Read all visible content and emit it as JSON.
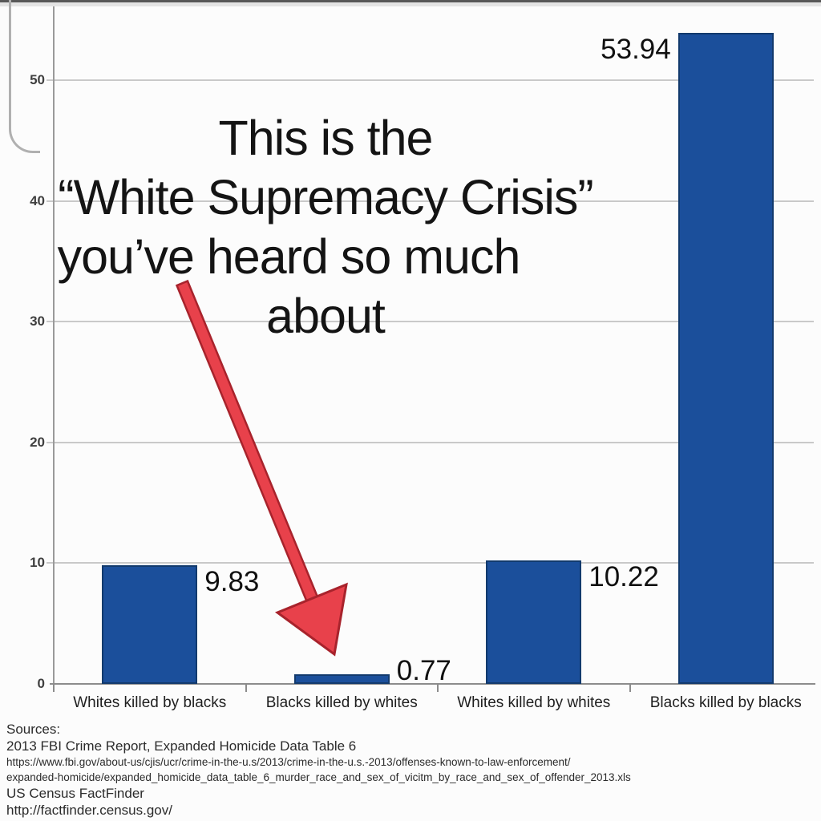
{
  "frame": {
    "top_bar_color": "#585858",
    "top_strip_color": "#e4e4e4",
    "corner_color": "#b0b0b0"
  },
  "chart_data": {
    "type": "bar",
    "title": "",
    "xlabel": "",
    "ylabel": "",
    "categories": [
      "Whites killed by blacks",
      "Blacks killed by whites",
      "Whites killed by whites",
      "Blacks killed by blacks"
    ],
    "values": [
      9.83,
      0.77,
      10.22,
      53.94
    ],
    "value_labels": [
      "9.83",
      "0.77",
      "10.22",
      "53.94"
    ],
    "yticks": [
      0,
      10,
      20,
      30,
      40,
      50
    ],
    "ylim": [
      0,
      55
    ],
    "grid": true,
    "legend": "none",
    "bar_color": "#1b4f9b",
    "bar_border_color": "#123a6d",
    "gridline_color": "#c9c9c9",
    "axis_color": "#8c8c8c",
    "tick_label_color": "#3f3f3f"
  },
  "annotation": {
    "lines": [
      "This is the",
      "“White Supremacy Crisis”",
      "you’ve heard so much",
      "about"
    ],
    "text_color": "#141414",
    "arrow_fill": "#e8414b",
    "arrow_outline": "#a8232c"
  },
  "sources": {
    "heading": "Sources:",
    "lines": [
      "2013 FBI Crime Report, Expanded Homicide Data Table 6",
      "https://www.fbi.gov/about-us/cjis/ucr/crime-in-the-u.s/2013/crime-in-the-u.s.-2013/offenses-known-to-law-enforcement/",
      "expanded-homicide/expanded_homicide_data_table_6_murder_race_and_sex_of_vicitm_by_race_and_sex_of_offender_2013.xls",
      "US Census FactFinder",
      "http://factfinder.census.gov/"
    ]
  }
}
